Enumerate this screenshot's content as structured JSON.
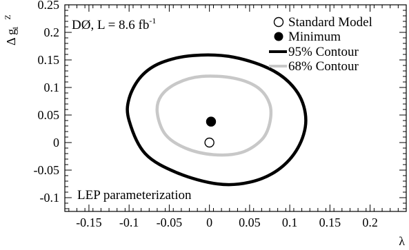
{
  "chart_data": {
    "type": "scatter",
    "title": "",
    "xlabel": "λ",
    "ylabel": "Δ g",
    "ylabel_sup": "Z",
    "ylabel_sub": "1",
    "xlim": [
      -0.18,
      0.245
    ],
    "ylim": [
      -0.125,
      0.25
    ],
    "xticks": [
      -0.15,
      -0.1,
      -0.05,
      0,
      0.05,
      0.1,
      0.15,
      0.2
    ],
    "xtick_labels": [
      "-0.15",
      "-0.1",
      "-0.05",
      "0",
      "0.05",
      "0.1",
      "0.15",
      "0.2"
    ],
    "yticks": [
      -0.1,
      -0.05,
      0,
      0.05,
      0.1,
      0.15,
      0.2,
      0.25
    ],
    "ytick_labels": [
      "-0.1",
      "-0.05",
      "0",
      "0.05",
      "0.1",
      "0.15",
      "0.2",
      "0.25"
    ],
    "annotations": {
      "experiment": "DØ, L = 8.6 fb",
      "experiment_sup": "-1",
      "parameterization": "LEP parameterization"
    },
    "legend": {
      "placement": "top-right",
      "entries": [
        {
          "label": "Standard Model",
          "marker": "open-circle"
        },
        {
          "label": "Minimum",
          "marker": "filled-circle"
        },
        {
          "label": "95% Contour",
          "marker": "line",
          "color": "#000000"
        },
        {
          "label": "68% Contour",
          "marker": "line",
          "color": "#c8c8c8"
        }
      ]
    },
    "points": [
      {
        "name": "Standard Model",
        "x": 0.0,
        "y": 0.0,
        "style": "open"
      },
      {
        "name": "Minimum",
        "x": 0.002,
        "y": 0.038,
        "style": "filled"
      }
    ],
    "contours": [
      {
        "name": "95% Contour",
        "color": "#000000",
        "points": [
          [
            -0.1,
            0.04
          ],
          [
            -0.1,
            0.08
          ],
          [
            -0.085,
            0.12
          ],
          [
            -0.06,
            0.145
          ],
          [
            -0.02,
            0.158
          ],
          [
            0.03,
            0.155
          ],
          [
            0.08,
            0.13
          ],
          [
            0.11,
            0.09
          ],
          [
            0.12,
            0.04
          ],
          [
            0.11,
            -0.01
          ],
          [
            0.085,
            -0.05
          ],
          [
            0.05,
            -0.072
          ],
          [
            0.01,
            -0.075
          ],
          [
            -0.04,
            -0.055
          ],
          [
            -0.08,
            -0.02
          ]
        ]
      },
      {
        "name": "68% Contour",
        "color": "#c8c8c8",
        "points": [
          [
            -0.065,
            0.055
          ],
          [
            -0.06,
            0.085
          ],
          [
            -0.04,
            0.108
          ],
          [
            -0.01,
            0.12
          ],
          [
            0.03,
            0.117
          ],
          [
            0.06,
            0.1
          ],
          [
            0.075,
            0.07
          ],
          [
            0.075,
            0.035
          ],
          [
            0.065,
            0.005
          ],
          [
            0.04,
            -0.018
          ],
          [
            0.005,
            -0.022
          ],
          [
            -0.03,
            -0.01
          ],
          [
            -0.055,
            0.015
          ]
        ]
      }
    ]
  }
}
